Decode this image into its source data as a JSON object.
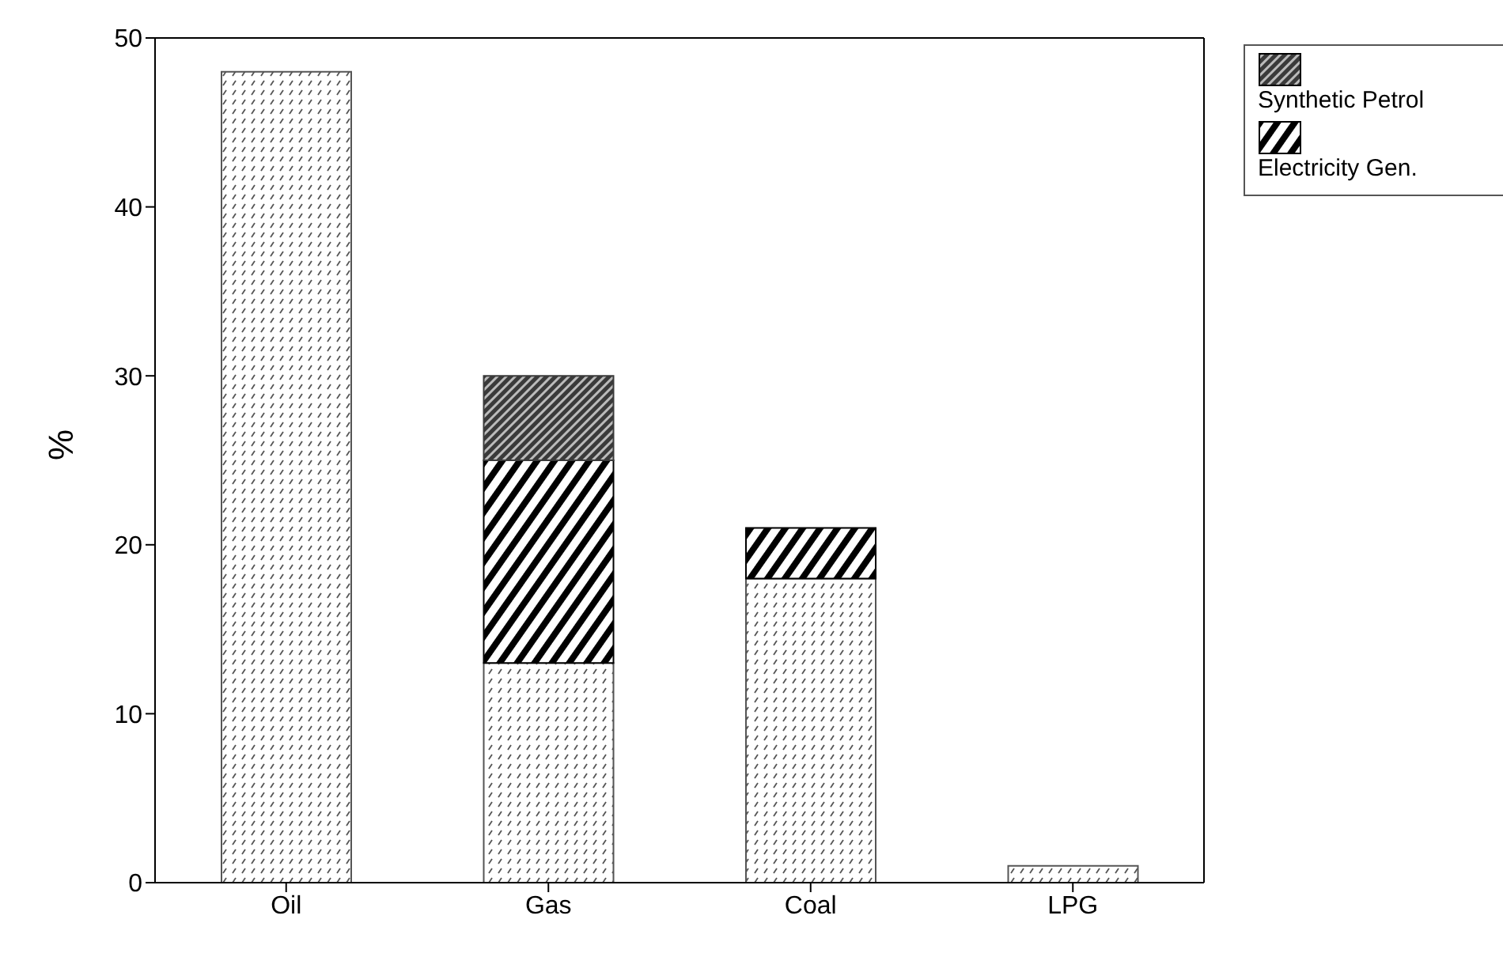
{
  "chart_data": {
    "type": "bar",
    "ylabel": "%",
    "categories": [
      "Oil",
      "Gas",
      "Coal",
      "LPG"
    ],
    "stacked": true,
    "series": [
      {
        "color": "#555555",
        "values": [
          48,
          13,
          18,
          1
        ]
      },
      {
        "name": "Electricity Gen.",
        "color": "#000000",
        "values": [
          null,
          12,
          3,
          null
        ]
      },
      {
        "name": "Synthetic Petrol",
        "color": "#3a3a3a",
        "values": [
          null,
          5,
          null,
          null
        ]
      }
    ],
    "ylim": [
      0,
      50
    ],
    "yticks": [
      0,
      10,
      20,
      30,
      40,
      50
    ],
    "legend": "top right"
  }
}
